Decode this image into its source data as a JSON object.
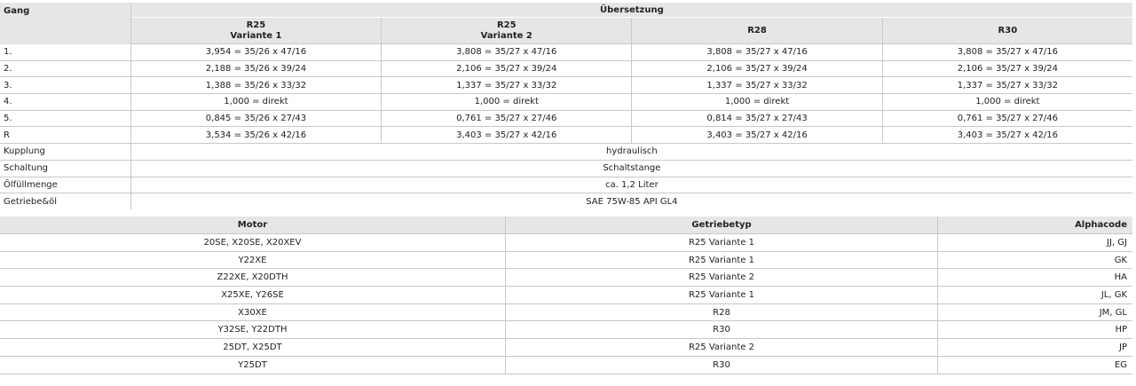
{
  "gear_table": {
    "gang_header": "Gang",
    "group_header": "Übersetzung",
    "columns": [
      {
        "line1": "R25",
        "line2": "Variante 1"
      },
      {
        "line1": "R25",
        "line2": "Variante 2"
      },
      {
        "line1": "R28",
        "line2": ""
      },
      {
        "line1": "R30",
        "line2": ""
      }
    ],
    "rows": [
      {
        "gang": "1.",
        "values": [
          "3,954 = 35/26 x 47/16",
          "3,808 = 35/27 x 47/16",
          "3,808 = 35/27 x 47/16",
          "3,808 = 35/27 x 47/16"
        ]
      },
      {
        "gang": "2.",
        "values": [
          "2,188 = 35/26 x 39/24",
          "2,106 = 35/27 x 39/24",
          "2,106 = 35/27 x 39/24",
          "2,106 = 35/27 x 39/24"
        ]
      },
      {
        "gang": "3.",
        "values": [
          "1,388 = 35/26 x 33/32",
          "1,337 = 35/27 x 33/32",
          "1,337 = 35/27 x 33/32",
          "1,337 = 35/27 x 33/32"
        ]
      },
      {
        "gang": "4.",
        "values": [
          "1,000 = direkt",
          "1,000 = direkt",
          "1,000 = direkt",
          "1,000 = direkt"
        ]
      },
      {
        "gang": "5.",
        "values": [
          "0,845 = 35/26 x 27/43",
          "0,761 = 35/27 x 27/46",
          "0,814 = 35/27 x 27/43",
          "0,761 = 35/27 x 27/46"
        ]
      },
      {
        "gang": "R",
        "values": [
          "3,534 = 35/26 x 42/16",
          "3,403 = 35/27 x 42/16",
          "3,403 = 35/27 x 42/16",
          "3,403 = 35/27 x 42/16"
        ]
      }
    ],
    "spanning_rows": [
      {
        "label": "Kupplung",
        "value": "hydraulisch"
      },
      {
        "label": "Schaltung",
        "value": "Schaltstange"
      },
      {
        "label": "Ölfüllmenge",
        "value": "ca. 1,2 Liter"
      },
      {
        "label": "Getriebe&öl",
        "value": "SAE 75W-85 API GL4"
      }
    ]
  },
  "motor_table": {
    "headers": [
      "Motor",
      "Getriebetyp",
      "Alphacode"
    ],
    "rows": [
      [
        "20SE, X20SE, X20XEV",
        "R25 Variante 1",
        "JJ, GJ"
      ],
      [
        "Y22XE",
        "R25 Variante 1",
        "GK"
      ],
      [
        "Z22XE, X20DTH",
        "R25 Variante 2",
        "HA"
      ],
      [
        "X25XE, Y26SE",
        "R25 Variante 1",
        "JL, GK"
      ],
      [
        "X30XE",
        "R28",
        "JM, GL"
      ],
      [
        "Y32SE, Y22DTH",
        "R30",
        "HP"
      ],
      [
        "25DT, X25DT",
        "R25 Variante 2",
        "JP"
      ],
      [
        "Y25DT",
        "R30",
        "EG"
      ]
    ]
  }
}
